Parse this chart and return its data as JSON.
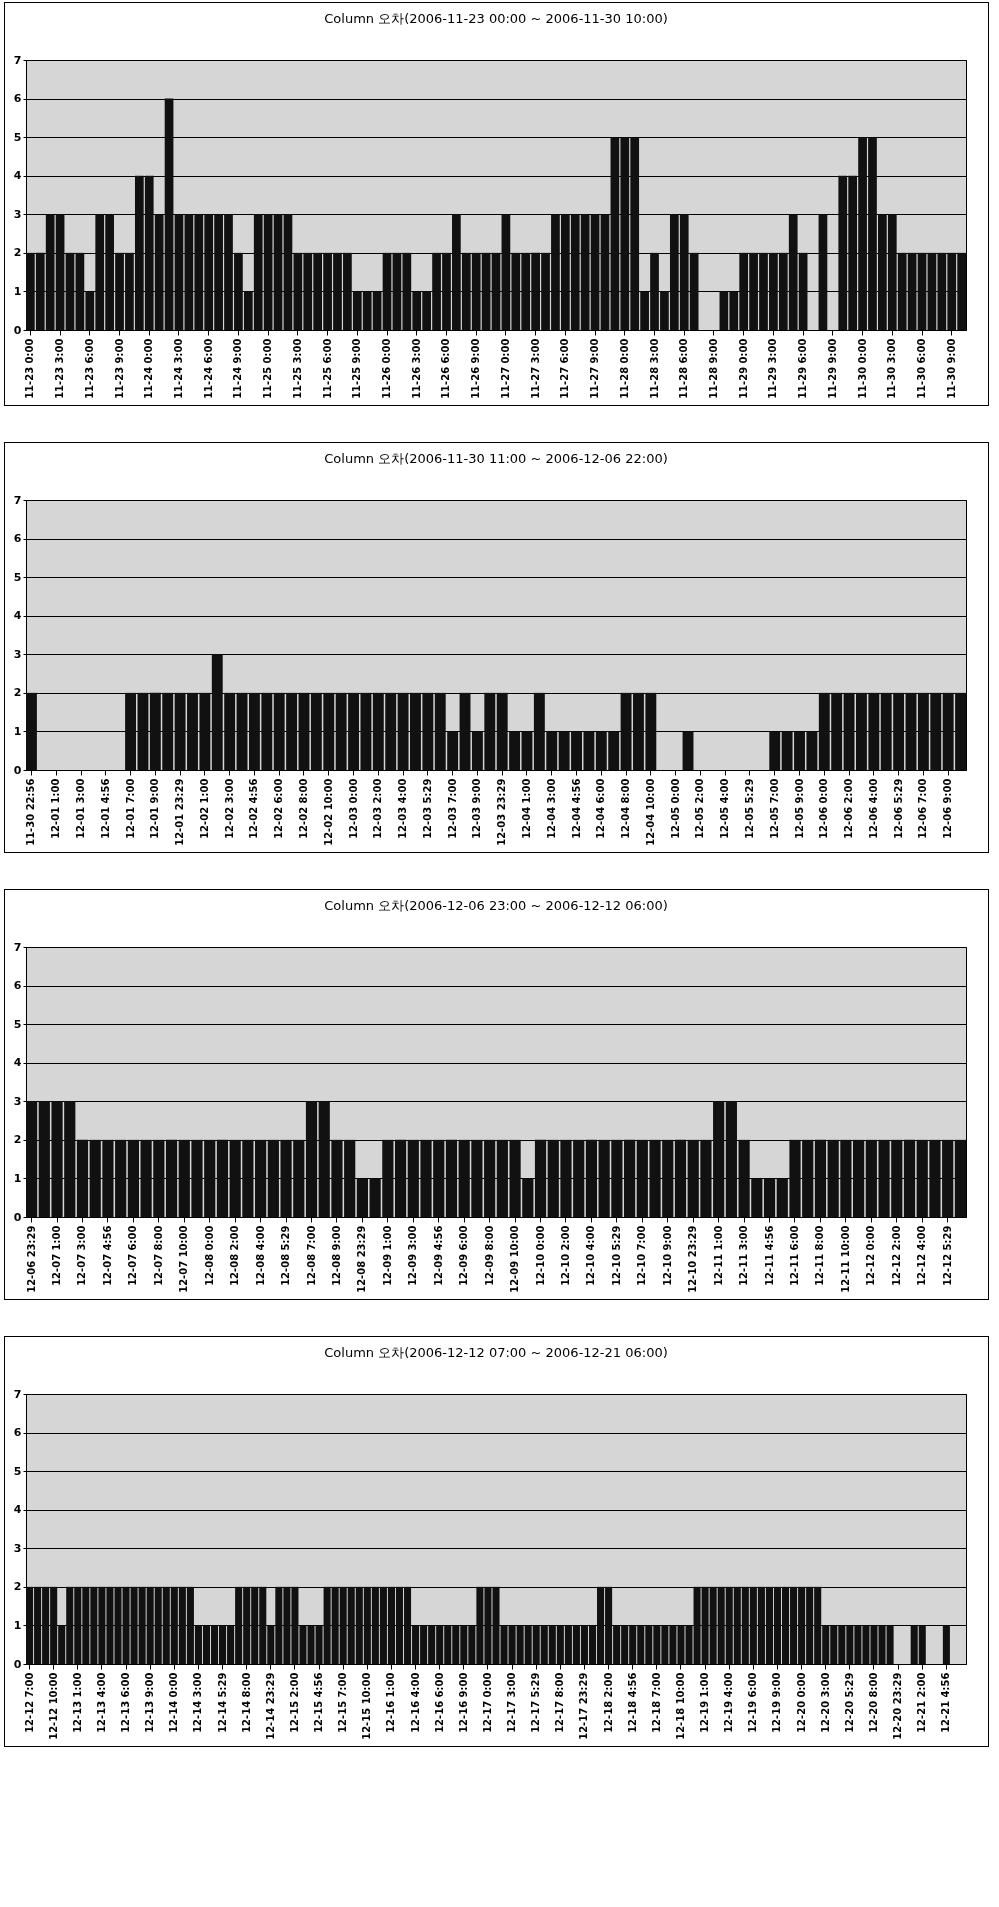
{
  "chart_data": [
    {
      "type": "bar",
      "title": "Column 오차(2006-11-23 00:00 ~ 2006-11-30 10:00)",
      "color": "#111111",
      "ylim": [
        0,
        7
      ],
      "yticks": [
        0,
        1,
        2,
        3,
        4,
        5,
        6,
        7
      ],
      "grid": "y",
      "categories": [
        "11-23 0:00",
        null,
        null,
        "11-23 3:00",
        null,
        null,
        "11-23 6:00",
        null,
        null,
        "11-23 9:00",
        null,
        null,
        "11-24 0:00",
        null,
        null,
        "11-24 3:00",
        null,
        null,
        "11-24 6:00",
        null,
        null,
        "11-24 9:00",
        null,
        null,
        "11-25 0:00",
        null,
        null,
        "11-25 3:00",
        null,
        null,
        "11-25 6:00",
        null,
        null,
        "11-25 9:00",
        null,
        null,
        "11-26 0:00",
        null,
        null,
        "11-26 3:00",
        null,
        null,
        "11-26 6:00",
        null,
        null,
        "11-26 9:00",
        null,
        null,
        "11-27 0:00",
        null,
        null,
        "11-27 3:00",
        null,
        null,
        "11-27 6:00",
        null,
        null,
        "11-27 9:00",
        null,
        null,
        "11-28 0:00",
        null,
        null,
        "11-28 3:00",
        null,
        null,
        "11-28 6:00",
        null,
        null,
        "11-28 9:00",
        null,
        null,
        "11-29 0:00",
        null,
        null,
        "11-29 3:00",
        null,
        null,
        "11-29 6:00",
        null,
        null,
        "11-29 9:00",
        null,
        null,
        "11-30 0:00",
        null,
        null,
        "11-30 3:00",
        null,
        null,
        "11-30 6:00",
        null,
        null,
        "11-30 9:00",
        null
      ],
      "values": [
        2,
        2,
        3,
        3,
        2,
        2,
        1,
        3,
        3,
        2,
        2,
        4,
        4,
        3,
        6,
        3,
        3,
        3,
        3,
        3,
        3,
        2,
        1,
        3,
        3,
        3,
        3,
        2,
        2,
        2,
        2,
        2,
        2,
        1,
        1,
        1,
        2,
        2,
        2,
        1,
        1,
        2,
        2,
        3,
        2,
        2,
        2,
        2,
        3,
        2,
        2,
        2,
        2,
        3,
        3,
        3,
        3,
        3,
        3,
        5,
        5,
        5,
        1,
        2,
        1,
        3,
        3,
        2,
        0,
        0,
        1,
        1,
        2,
        2,
        2,
        2,
        2,
        3,
        2,
        0,
        3,
        0,
        4,
        4,
        5,
        5,
        3,
        3,
        2,
        2,
        2,
        2,
        2,
        2,
        2
      ]
    },
    {
      "type": "bar",
      "title": "Column 오차(2006-11-30 11:00 ~ 2006-12-06 22:00)",
      "color": "#111111",
      "ylim": [
        0,
        7
      ],
      "yticks": [
        0,
        1,
        2,
        3,
        4,
        5,
        6,
        7
      ],
      "grid": "y",
      "categories": [
        "11-30 22:56",
        null,
        "12-01 1:00",
        null,
        "12-01 3:00",
        null,
        "12-01 4:56",
        null,
        "12-01 7:00",
        null,
        "12-01 9:00",
        null,
        "12-01 23:29",
        null,
        "12-02 1:00",
        null,
        "12-02 3:00",
        null,
        "12-02 4:56",
        null,
        "12-02 6:00",
        null,
        "12-02 8:00",
        null,
        "12-02 10:00",
        null,
        "12-03 0:00",
        null,
        "12-03 2:00",
        null,
        "12-03 4:00",
        null,
        "12-03 5:29",
        null,
        "12-03 7:00",
        null,
        "12-03 9:00",
        null,
        "12-03 23:29",
        null,
        "12-04 1:00",
        null,
        "12-04 3:00",
        null,
        "12-04 4:56",
        null,
        "12-04 6:00",
        null,
        "12-04 8:00",
        null,
        "12-04 10:00",
        null,
        "12-05 0:00",
        null,
        "12-05 2:00",
        null,
        "12-05 4:00",
        null,
        "12-05 5:29",
        null,
        "12-05 7:00",
        null,
        "12-05 9:00",
        null,
        "12-06 0:00",
        null,
        "12-06 2:00",
        null,
        "12-06 4:00",
        null,
        "12-06 5:29",
        null,
        "12-06 7:00",
        null,
        "12-06 9:00",
        null
      ],
      "values": [
        2,
        0,
        0,
        0,
        0,
        0,
        0,
        0,
        2,
        2,
        2,
        2,
        2,
        2,
        2,
        3,
        2,
        2,
        2,
        2,
        2,
        2,
        2,
        2,
        2,
        2,
        2,
        2,
        2,
        2,
        2,
        2,
        2,
        2,
        1,
        2,
        1,
        2,
        2,
        1,
        1,
        2,
        1,
        1,
        1,
        1,
        1,
        1,
        2,
        2,
        2,
        0,
        0,
        1,
        0,
        0,
        0,
        0,
        0,
        0,
        1,
        1,
        1,
        1,
        2,
        2,
        2,
        2,
        2,
        2,
        2,
        2,
        2,
        2,
        2,
        2
      ]
    },
    {
      "type": "bar",
      "title": "Column 오차(2006-12-06 23:00 ~ 2006-12-12 06:00)",
      "color": "#111111",
      "ylim": [
        0,
        7
      ],
      "yticks": [
        0,
        1,
        2,
        3,
        4,
        5,
        6,
        7
      ],
      "grid": "y",
      "categories": [
        "12-06 23:29",
        null,
        "12-07 1:00",
        null,
        "12-07 3:00",
        null,
        "12-07 4:56",
        null,
        "12-07 6:00",
        null,
        "12-07 8:00",
        null,
        "12-07 10:00",
        null,
        "12-08 0:00",
        null,
        "12-08 2:00",
        null,
        "12-08 4:00",
        null,
        "12-08 5:29",
        null,
        "12-08 7:00",
        null,
        "12-08 9:00",
        null,
        "12-08 23:29",
        null,
        "12-09 1:00",
        null,
        "12-09 3:00",
        null,
        "12-09 4:56",
        null,
        "12-09 6:00",
        null,
        "12-09 8:00",
        null,
        "12-09 10:00",
        null,
        "12-10 0:00",
        null,
        "12-10 2:00",
        null,
        "12-10 4:00",
        null,
        "12-10 5:29",
        null,
        "12-10 7:00",
        null,
        "12-10 9:00",
        null,
        "12-10 23:29",
        null,
        "12-11 1:00",
        null,
        "12-11 3:00",
        null,
        "12-11 4:56",
        null,
        "12-11 6:00",
        null,
        "12-11 8:00",
        null,
        "12-11 10:00",
        null,
        "12-12 0:00",
        null,
        "12-12 2:00",
        null,
        "12-12 4:00",
        null,
        "12-12 5:29",
        null
      ],
      "values": [
        3,
        3,
        3,
        3,
        2,
        2,
        2,
        2,
        2,
        2,
        2,
        2,
        2,
        2,
        2,
        2,
        2,
        2,
        2,
        2,
        2,
        2,
        3,
        3,
        2,
        2,
        1,
        1,
        2,
        2,
        2,
        2,
        2,
        2,
        2,
        2,
        2,
        2,
        2,
        1,
        2,
        2,
        2,
        2,
        2,
        2,
        2,
        2,
        2,
        2,
        2,
        2,
        2,
        2,
        3,
        3,
        2,
        1,
        1,
        1,
        2,
        2,
        2,
        2,
        2,
        2,
        2,
        2,
        2,
        2,
        2,
        2,
        2,
        2
      ]
    },
    {
      "type": "bar",
      "title": "Column 오차(2006-12-12 07:00 ~ 2006-12-21 06:00)",
      "color": "#111111",
      "ylim": [
        0,
        7
      ],
      "yticks": [
        0,
        1,
        2,
        3,
        4,
        5,
        6,
        7
      ],
      "grid": "y",
      "categories": [
        "12-12 7:00",
        null,
        null,
        "12-12 10:00",
        null,
        null,
        "12-13 1:00",
        null,
        null,
        "12-13 4:00",
        null,
        null,
        "12-13 6:00",
        null,
        null,
        "12-13 9:00",
        null,
        null,
        "12-14 0:00",
        null,
        null,
        "12-14 3:00",
        null,
        null,
        "12-14 5:29",
        null,
        null,
        "12-14 8:00",
        null,
        null,
        "12-14 23:29",
        null,
        null,
        "12-15 2:00",
        null,
        null,
        "12-15 4:56",
        null,
        null,
        "12-15 7:00",
        null,
        null,
        "12-15 10:00",
        null,
        null,
        "12-16 1:00",
        null,
        null,
        "12-16 4:00",
        null,
        null,
        "12-16 6:00",
        null,
        null,
        "12-16 9:00",
        null,
        null,
        "12-17 0:00",
        null,
        null,
        "12-17 3:00",
        null,
        null,
        "12-17 5:29",
        null,
        null,
        "12-17 8:00",
        null,
        null,
        "12-17 23:29",
        null,
        null,
        "12-18 2:00",
        null,
        null,
        "12-18 4:56",
        null,
        null,
        "12-18 7:00",
        null,
        null,
        "12-18 10:00",
        null,
        null,
        "12-19 1:00",
        null,
        null,
        "12-19 4:00",
        null,
        null,
        "12-19 6:00",
        null,
        null,
        "12-19 9:00",
        null,
        null,
        "12-20 0:00",
        null,
        null,
        "12-20 3:00",
        null,
        null,
        "12-20 5:29",
        null,
        null,
        "12-20 8:00",
        null,
        null,
        "12-20 23:29",
        null,
        null,
        "12-21 2:00",
        null,
        null,
        "12-21 4:56",
        null,
        null
      ],
      "values": [
        2,
        2,
        2,
        2,
        1,
        2,
        2,
        2,
        2,
        2,
        2,
        2,
        2,
        2,
        2,
        2,
        2,
        2,
        2,
        2,
        2,
        1,
        1,
        1,
        1,
        1,
        2,
        2,
        2,
        2,
        1,
        2,
        2,
        2,
        1,
        1,
        1,
        2,
        2,
        2,
        2,
        2,
        2,
        2,
        2,
        2,
        2,
        2,
        1,
        1,
        1,
        1,
        1,
        1,
        1,
        1,
        2,
        2,
        2,
        1,
        1,
        1,
        1,
        1,
        1,
        1,
        1,
        1,
        1,
        1,
        1,
        2,
        2,
        1,
        1,
        1,
        1,
        1,
        1,
        1,
        1,
        1,
        1,
        2,
        2,
        2,
        2,
        2,
        2,
        2,
        2,
        2,
        2,
        2,
        2,
        2,
        2,
        2,
        2,
        1,
        1,
        1,
        1,
        1,
        1,
        1,
        1,
        1,
        0,
        0,
        1,
        1,
        0,
        0,
        1,
        0,
        0
      ]
    }
  ]
}
